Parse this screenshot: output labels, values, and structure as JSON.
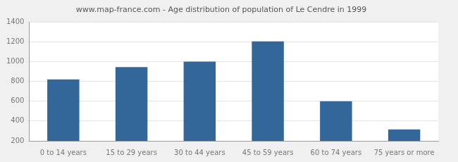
{
  "chart_data": {
    "type": "bar",
    "title": "www.map-france.com - Age distribution of population of Le Cendre in 1999",
    "categories": [
      "0 to 14 years",
      "15 to 29 years",
      "30 to 44 years",
      "45 to 59 years",
      "60 to 74 years",
      "75 years or more"
    ],
    "values": [
      820,
      945,
      1000,
      1205,
      600,
      315
    ],
    "color": "#336699",
    "ylim": [
      200,
      1400
    ],
    "yticks": [
      200,
      400,
      600,
      800,
      1000,
      1200,
      1400
    ],
    "grid": true
  }
}
